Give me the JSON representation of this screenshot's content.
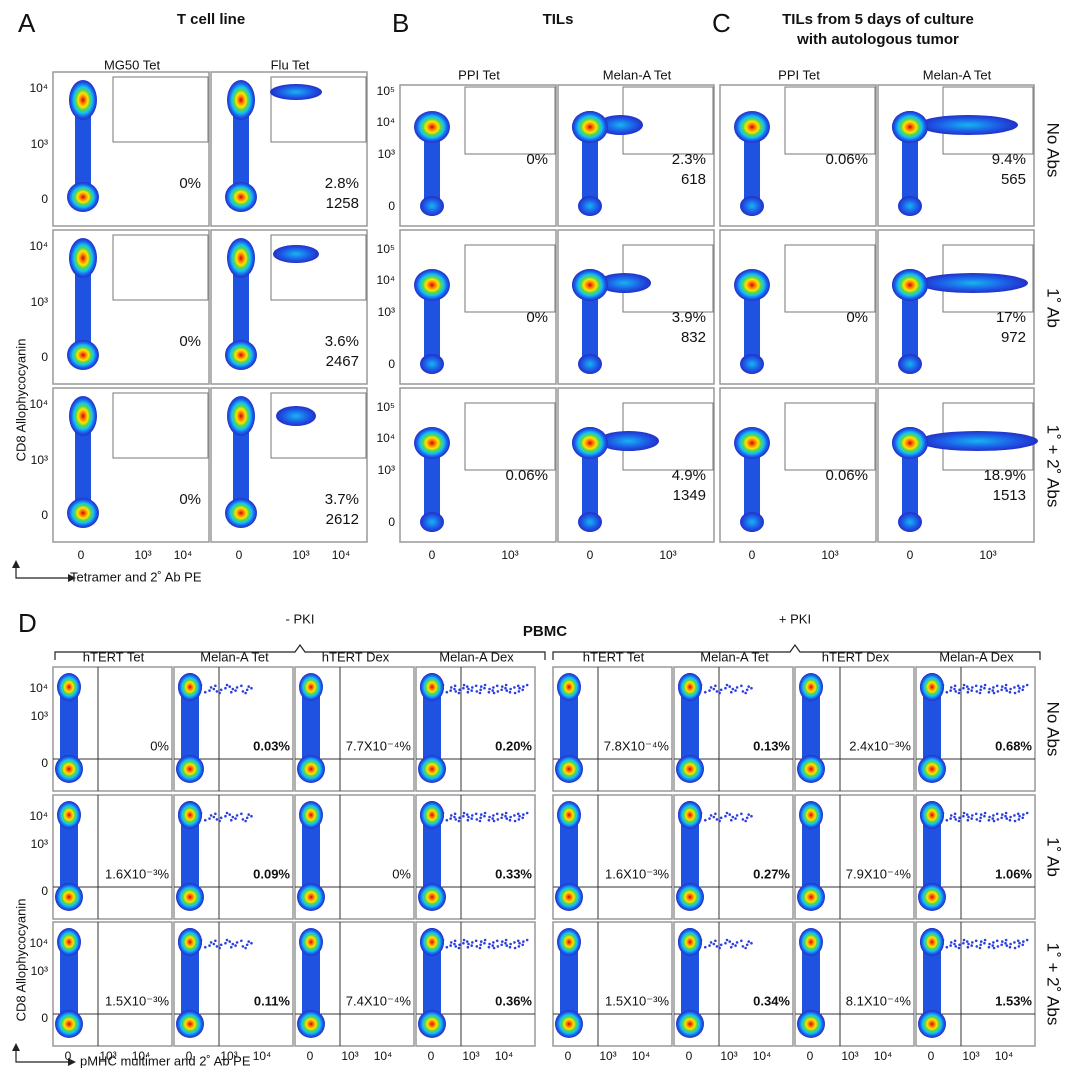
{
  "panel_labels": [
    "A",
    "B",
    "C",
    "D"
  ],
  "top": {
    "groups": [
      {
        "title": [
          "T cell line"
        ],
        "columns": [
          "MG50 Tet",
          "Flu Tet"
        ],
        "y_ticks": [
          "10⁴",
          "10³",
          "0"
        ],
        "x_ticks": [
          "0",
          "10³",
          "10⁴"
        ],
        "gates": [
          [
            [
              "0%"
            ],
            [
              "2.8%",
              "1258"
            ]
          ],
          [
            [
              "0%"
            ],
            [
              "3.6%",
              "2467"
            ]
          ],
          [
            [
              "0%"
            ],
            [
              "3.7%",
              "2612"
            ]
          ]
        ]
      },
      {
        "title": [
          "TILs"
        ],
        "columns": [
          "PPI Tet",
          "Melan-A Tet"
        ],
        "y_ticks": [
          "10⁵",
          "10⁴",
          "10³",
          "0"
        ],
        "x_ticks": [
          "0",
          "10³"
        ],
        "gates": [
          [
            [
              "0%"
            ],
            [
              "2.3%",
              "618"
            ]
          ],
          [
            [
              "0%"
            ],
            [
              "3.9%",
              "832"
            ]
          ],
          [
            [
              "0.06%"
            ],
            [
              "4.9%",
              "1349"
            ]
          ]
        ]
      },
      {
        "title": [
          "TILs from 5 days of culture",
          "with autologous tumor"
        ],
        "columns": [
          "PPI Tet",
          "Melan-A Tet"
        ],
        "x_ticks": [
          "0",
          "10³"
        ],
        "gates": [
          [
            [
              "0.06%"
            ],
            [
              "9.4%",
              "565"
            ]
          ],
          [
            [
              "0%"
            ],
            [
              "17%",
              "972"
            ]
          ],
          [
            [
              "0.06%"
            ],
            [
              "18.9%",
              "1513"
            ]
          ]
        ]
      }
    ],
    "row_labels": [
      "No Abs",
      "1˚ Ab",
      "1˚ + 2˚ Abs"
    ],
    "row_label_colors": [
      "#8c8c8c",
      "#ee1c1c",
      "#2323d8"
    ],
    "y_axis_label": "CD8 Allophycocyanin",
    "x_axis_label": "Tetramer and 2˚ Ab PE"
  },
  "d": {
    "title": "PBMC",
    "conditions": [
      "- PKI",
      "+ PKI"
    ],
    "columns": [
      "hTERT Tet",
      "Melan-A Tet",
      "hTERT Dex",
      "Melan-A Dex",
      "hTERT Tet",
      "Melan-A Tet",
      "hTERT Dex",
      "Melan-A Dex"
    ],
    "y_ticks": [
      "10⁴",
      "10³",
      "0"
    ],
    "x_ticks": [
      "0",
      "10³",
      "10⁴"
    ],
    "gates": [
      [
        "0%",
        "0.03%",
        "7.7X10⁻⁴%",
        "0.20%",
        "7.8X10⁻⁴%",
        "0.13%",
        "2.4x10⁻³%",
        "0.68%"
      ],
      [
        "1.6X10⁻³%",
        "0.09%",
        "0%",
        "0.33%",
        "1.6X10⁻³%",
        "0.27%",
        "7.9X10⁻⁴%",
        "1.06%"
      ],
      [
        "1.5X10⁻³%",
        "0.11%",
        "7.4X10⁻⁴%",
        "0.36%",
        "1.5X10⁻³%",
        "0.34%",
        "8.1X10⁻⁴%",
        "1.53%"
      ]
    ],
    "row_labels": [
      "No Abs",
      "1˚ Ab",
      "1˚ + 2˚ Abs"
    ],
    "row_label_colors": [
      "#8c8c8c",
      "#ee1c1c",
      "#2323d8"
    ],
    "y_axis_label": "CD8 Allophycocyanin",
    "x_axis_label": "pMHC multimer and 2˚ Ab PE"
  }
}
